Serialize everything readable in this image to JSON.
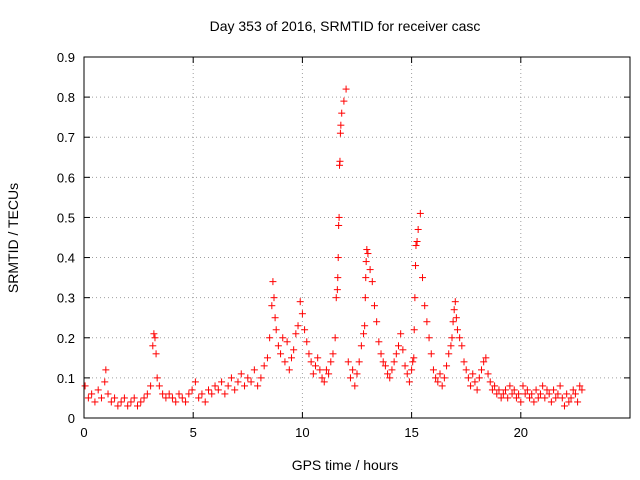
{
  "chart_data": {
    "type": "scatter",
    "title": "Day 353 of 2016, SRMTID for receiver casc",
    "xlabel": "GPS time / hours",
    "ylabel": "SRMTID / TECUs",
    "xlim": [
      0,
      25
    ],
    "ylim": [
      0,
      0.9
    ],
    "xticks": [
      0,
      5,
      10,
      15,
      20
    ],
    "xtick_labels": [
      "0",
      "5",
      "10",
      "15",
      "20"
    ],
    "yticks": [
      0,
      0.1,
      0.2,
      0.3,
      0.4,
      0.5,
      0.6,
      0.7,
      0.8,
      0.9
    ],
    "ytick_labels": [
      "0",
      "0.1",
      "0.2",
      "0.3",
      "0.4",
      "0.5",
      "0.6",
      "0.7",
      "0.8",
      "0.9"
    ],
    "grid": true,
    "marker": "+",
    "color": "#ff0000",
    "series": [
      {
        "name": "SRMTID",
        "x": [
          0.05,
          0.2,
          0.35,
          0.5,
          0.65,
          0.8,
          0.95,
          1.0,
          1.1,
          1.25,
          1.4,
          1.55,
          1.7,
          1.85,
          2.0,
          2.15,
          2.3,
          2.45,
          2.6,
          2.75,
          2.9,
          3.05,
          3.15,
          3.2,
          3.25,
          3.3,
          3.35,
          3.45,
          3.6,
          3.75,
          3.9,
          4.05,
          4.2,
          4.35,
          4.5,
          4.65,
          4.8,
          4.95,
          5.1,
          5.25,
          5.4,
          5.55,
          5.7,
          5.85,
          6.0,
          6.15,
          6.3,
          6.45,
          6.6,
          6.75,
          6.9,
          7.05,
          7.2,
          7.35,
          7.5,
          7.65,
          7.8,
          7.95,
          8.1,
          8.25,
          8.4,
          8.5,
          8.6,
          8.65,
          8.7,
          8.75,
          8.8,
          8.9,
          9.0,
          9.1,
          9.2,
          9.3,
          9.4,
          9.5,
          9.6,
          9.7,
          9.8,
          9.9,
          10.0,
          10.1,
          10.2,
          10.3,
          10.4,
          10.5,
          10.6,
          10.7,
          10.8,
          10.9,
          11.0,
          11.1,
          11.2,
          11.3,
          11.4,
          11.5,
          11.55,
          11.6,
          11.62,
          11.64,
          11.66,
          11.68,
          11.7,
          11.72,
          11.74,
          11.76,
          11.8,
          11.9,
          12.0,
          12.1,
          12.2,
          12.3,
          12.4,
          12.5,
          12.6,
          12.7,
          12.8,
          12.85,
          12.88,
          12.9,
          12.92,
          12.95,
          13.0,
          13.1,
          13.2,
          13.3,
          13.4,
          13.5,
          13.6,
          13.7,
          13.8,
          13.9,
          14.0,
          14.1,
          14.2,
          14.3,
          14.4,
          14.5,
          14.6,
          14.7,
          14.8,
          14.9,
          15.0,
          15.05,
          15.1,
          15.12,
          15.15,
          15.18,
          15.2,
          15.25,
          15.3,
          15.4,
          15.5,
          15.6,
          15.7,
          15.8,
          15.9,
          16.0,
          16.1,
          16.2,
          16.3,
          16.4,
          16.5,
          16.6,
          16.7,
          16.8,
          16.85,
          16.9,
          16.95,
          17.0,
          17.05,
          17.1,
          17.2,
          17.3,
          17.4,
          17.5,
          17.6,
          17.7,
          17.8,
          17.9,
          18.0,
          18.1,
          18.2,
          18.3,
          18.4,
          18.5,
          18.6,
          18.7,
          18.8,
          18.9,
          19.0,
          19.1,
          19.2,
          19.3,
          19.4,
          19.5,
          19.6,
          19.7,
          19.8,
          19.9,
          20.0,
          20.1,
          20.2,
          20.3,
          20.4,
          20.5,
          20.6,
          20.7,
          20.8,
          20.9,
          21.0,
          21.1,
          21.2,
          21.3,
          21.4,
          21.5,
          21.6,
          21.7,
          21.8,
          21.9,
          22.0,
          22.1,
          22.2,
          22.3,
          22.4,
          22.5,
          22.6,
          22.7,
          22.8
        ],
        "y": [
          0.08,
          0.05,
          0.06,
          0.04,
          0.07,
          0.05,
          0.09,
          0.12,
          0.06,
          0.04,
          0.05,
          0.03,
          0.04,
          0.05,
          0.03,
          0.04,
          0.05,
          0.03,
          0.04,
          0.05,
          0.06,
          0.08,
          0.18,
          0.21,
          0.2,
          0.16,
          0.1,
          0.08,
          0.06,
          0.05,
          0.06,
          0.05,
          0.04,
          0.06,
          0.05,
          0.04,
          0.06,
          0.07,
          0.09,
          0.05,
          0.06,
          0.04,
          0.07,
          0.06,
          0.08,
          0.07,
          0.09,
          0.06,
          0.08,
          0.1,
          0.07,
          0.09,
          0.11,
          0.08,
          0.1,
          0.09,
          0.12,
          0.08,
          0.1,
          0.13,
          0.15,
          0.2,
          0.28,
          0.34,
          0.3,
          0.25,
          0.22,
          0.18,
          0.16,
          0.2,
          0.14,
          0.19,
          0.12,
          0.15,
          0.17,
          0.21,
          0.23,
          0.29,
          0.26,
          0.22,
          0.19,
          0.16,
          0.14,
          0.11,
          0.13,
          0.15,
          0.12,
          0.1,
          0.09,
          0.12,
          0.11,
          0.14,
          0.16,
          0.2,
          0.3,
          0.32,
          0.35,
          0.4,
          0.48,
          0.5,
          0.63,
          0.64,
          0.71,
          0.73,
          0.76,
          0.79,
          0.82,
          0.14,
          0.1,
          0.12,
          0.08,
          0.11,
          0.14,
          0.18,
          0.21,
          0.23,
          0.3,
          0.35,
          0.39,
          0.42,
          0.41,
          0.37,
          0.34,
          0.28,
          0.24,
          0.19,
          0.16,
          0.14,
          0.13,
          0.11,
          0.1,
          0.12,
          0.14,
          0.16,
          0.18,
          0.21,
          0.17,
          0.13,
          0.11,
          0.09,
          0.12,
          0.14,
          0.15,
          0.22,
          0.3,
          0.38,
          0.43,
          0.44,
          0.47,
          0.51,
          0.35,
          0.28,
          0.24,
          0.2,
          0.16,
          0.12,
          0.1,
          0.09,
          0.11,
          0.08,
          0.1,
          0.13,
          0.16,
          0.18,
          0.2,
          0.24,
          0.27,
          0.29,
          0.25,
          0.22,
          0.2,
          0.18,
          0.14,
          0.12,
          0.1,
          0.08,
          0.11,
          0.09,
          0.07,
          0.1,
          0.12,
          0.14,
          0.15,
          0.11,
          0.09,
          0.07,
          0.08,
          0.06,
          0.07,
          0.05,
          0.06,
          0.07,
          0.05,
          0.08,
          0.06,
          0.07,
          0.05,
          0.06,
          0.04,
          0.08,
          0.06,
          0.07,
          0.05,
          0.06,
          0.04,
          0.07,
          0.05,
          0.06,
          0.08,
          0.05,
          0.07,
          0.06,
          0.04,
          0.07,
          0.05,
          0.06,
          0.08,
          0.05,
          0.03,
          0.06,
          0.04,
          0.05,
          0.07,
          0.06,
          0.04,
          0.08,
          0.07
        ]
      }
    ]
  }
}
